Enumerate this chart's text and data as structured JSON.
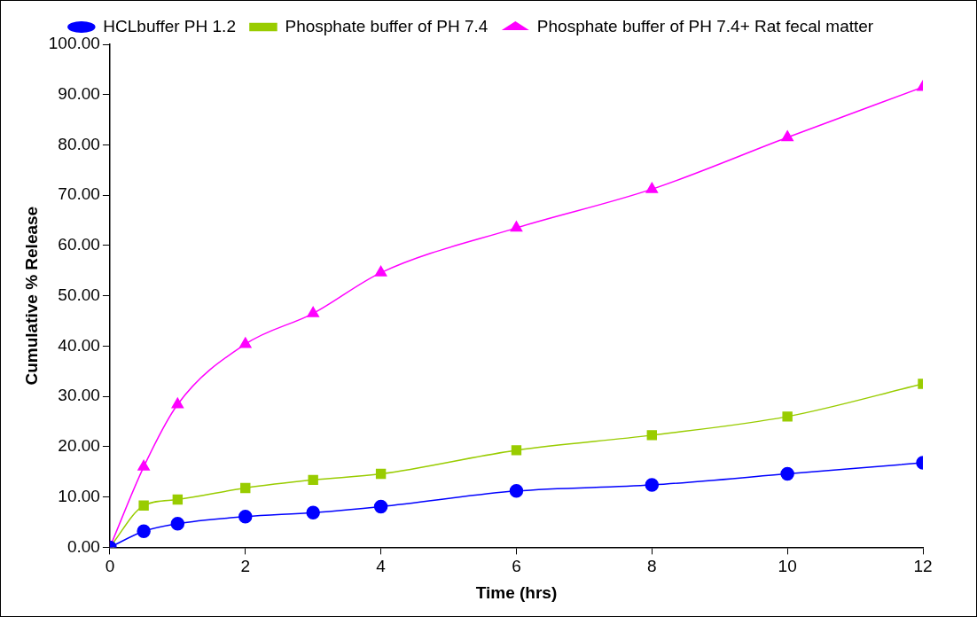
{
  "chart_data": {
    "type": "line",
    "xlabel": "Time (hrs)",
    "ylabel": "Cumulative % Release",
    "x": [
      0,
      0.5,
      1,
      2,
      3,
      4,
      6,
      8,
      10,
      12
    ],
    "series": [
      {
        "name": "HCLbuffer PH 1.2",
        "color": "#0000ff",
        "marker": "circle",
        "values": [
          0,
          3.2,
          4.7,
          6.1,
          6.9,
          8.1,
          11.2,
          12.4,
          14.6,
          16.8
        ]
      },
      {
        "name": "Phosphate buffer of PH 7.4",
        "color": "#99cc00",
        "marker": "square",
        "values": [
          0,
          8.3,
          9.5,
          11.8,
          13.4,
          14.6,
          19.3,
          22.3,
          26.0,
          32.5
        ]
      },
      {
        "name": "Phosphate buffer of PH 7.4+ Rat fecal matter",
        "color": "#ff00ff",
        "marker": "triangle",
        "values": [
          0,
          16.0,
          28.4,
          40.4,
          46.5,
          54.6,
          63.5,
          71.2,
          81.5,
          91.5
        ]
      }
    ],
    "xlim": [
      0,
      12
    ],
    "xticks": [
      0,
      2,
      4,
      6,
      8,
      10,
      12
    ],
    "ylim": [
      0,
      100
    ],
    "yticks": [
      {
        "value": 0,
        "label": "0.00"
      },
      {
        "value": 10,
        "label": "10.00"
      },
      {
        "value": 20,
        "label": "20.00"
      },
      {
        "value": 30,
        "label": "30.00"
      },
      {
        "value": 40,
        "label": "40.00"
      },
      {
        "value": 50,
        "label": "50.00"
      },
      {
        "value": 60,
        "label": "60.00"
      },
      {
        "value": 70,
        "label": "70.00"
      },
      {
        "value": 80,
        "label": "80.00"
      },
      {
        "value": 90,
        "label": "90.00"
      },
      {
        "value": 100,
        "label": "100.00"
      }
    ],
    "grid": false,
    "legend": "top",
    "line_style": "solid"
  }
}
